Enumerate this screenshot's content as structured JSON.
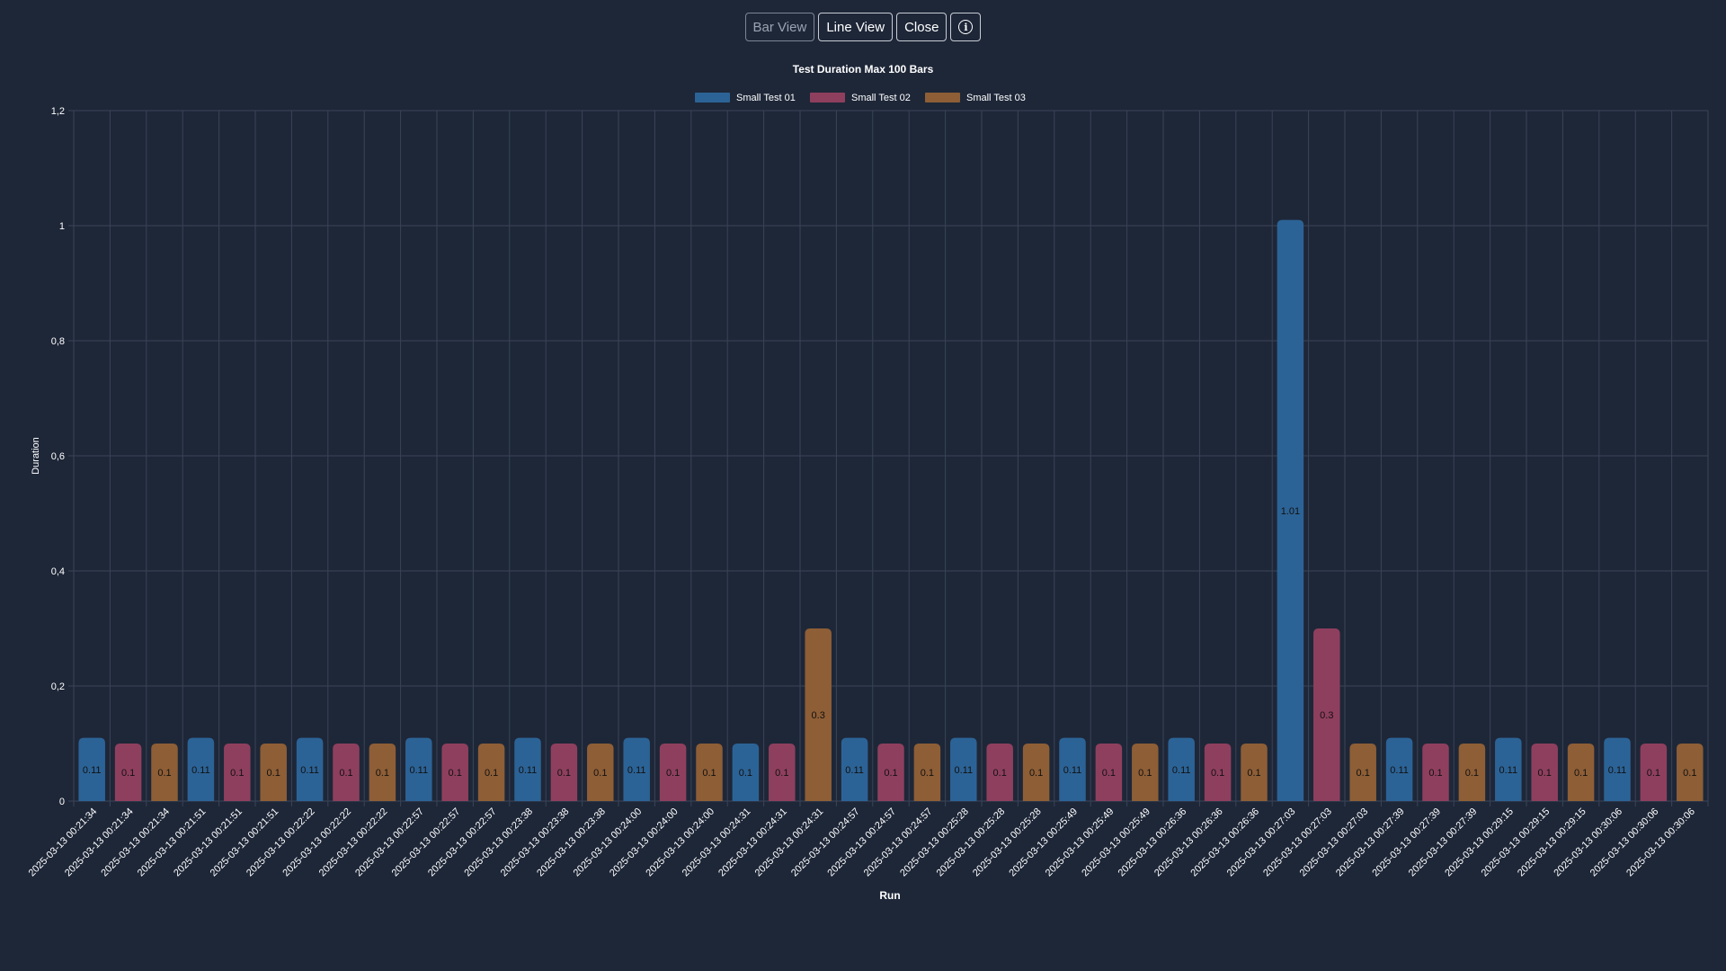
{
  "toolbar": {
    "bar_view_label": "Bar View",
    "line_view_label": "Line View",
    "close_label": "Close",
    "info_icon": "info-circle-icon"
  },
  "chart_data": {
    "type": "bar",
    "title": "Test Duration Max 100 Bars",
    "xlabel": "Run",
    "ylabel": "Duration",
    "ylim": [
      0,
      1.2
    ],
    "yticks": [
      "0",
      "0,2",
      "0,4",
      "0,6",
      "0,8",
      "1",
      "1,2"
    ],
    "legend_position": "top-center",
    "grid": true,
    "series": [
      {
        "name": "Small Test 01",
        "color": "#2c6396"
      },
      {
        "name": "Small Test 02",
        "color": "#8f3f5e"
      },
      {
        "name": "Small Test 03",
        "color": "#8e5e36"
      }
    ],
    "bars": [
      {
        "x": "2025-03-13 00:21:34",
        "series": 0,
        "value": 0.11,
        "label": "0.11"
      },
      {
        "x": "2025-03-13 00:21:34",
        "series": 1,
        "value": 0.1,
        "label": "0.1"
      },
      {
        "x": "2025-03-13 00:21:34",
        "series": 2,
        "value": 0.1,
        "label": "0.1"
      },
      {
        "x": "2025-03-13 00:21:51",
        "series": 0,
        "value": 0.11,
        "label": "0.11"
      },
      {
        "x": "2025-03-13 00:21:51",
        "series": 1,
        "value": 0.1,
        "label": "0.1"
      },
      {
        "x": "2025-03-13 00:21:51",
        "series": 2,
        "value": 0.1,
        "label": "0.1"
      },
      {
        "x": "2025-03-13 00:22:22",
        "series": 0,
        "value": 0.11,
        "label": "0.11"
      },
      {
        "x": "2025-03-13 00:22:22",
        "series": 1,
        "value": 0.1,
        "label": "0.1"
      },
      {
        "x": "2025-03-13 00:22:22",
        "series": 2,
        "value": 0.1,
        "label": "0.1"
      },
      {
        "x": "2025-03-13 00:22:57",
        "series": 0,
        "value": 0.11,
        "label": "0.11"
      },
      {
        "x": "2025-03-13 00:22:57",
        "series": 1,
        "value": 0.1,
        "label": "0.1"
      },
      {
        "x": "2025-03-13 00:22:57",
        "series": 2,
        "value": 0.1,
        "label": "0.1"
      },
      {
        "x": "2025-03-13 00:23:38",
        "series": 0,
        "value": 0.11,
        "label": "0.11"
      },
      {
        "x": "2025-03-13 00:23:38",
        "series": 1,
        "value": 0.1,
        "label": "0.1"
      },
      {
        "x": "2025-03-13 00:23:38",
        "series": 2,
        "value": 0.1,
        "label": "0.1"
      },
      {
        "x": "2025-03-13 00:24:00",
        "series": 0,
        "value": 0.11,
        "label": "0.11"
      },
      {
        "x": "2025-03-13 00:24:00",
        "series": 1,
        "value": 0.1,
        "label": "0.1"
      },
      {
        "x": "2025-03-13 00:24:00",
        "series": 2,
        "value": 0.1,
        "label": "0.1"
      },
      {
        "x": "2025-03-13 00:24:31",
        "series": 0,
        "value": 0.1,
        "label": "0.1"
      },
      {
        "x": "2025-03-13 00:24:31",
        "series": 1,
        "value": 0.1,
        "label": "0.1"
      },
      {
        "x": "2025-03-13 00:24:31",
        "series": 2,
        "value": 0.3,
        "label": "0.3"
      },
      {
        "x": "2025-03-13 00:24:57",
        "series": 0,
        "value": 0.11,
        "label": "0.11"
      },
      {
        "x": "2025-03-13 00:24:57",
        "series": 1,
        "value": 0.1,
        "label": "0.1"
      },
      {
        "x": "2025-03-13 00:24:57",
        "series": 2,
        "value": 0.1,
        "label": "0.1"
      },
      {
        "x": "2025-03-13 00:25:28",
        "series": 0,
        "value": 0.11,
        "label": "0.11"
      },
      {
        "x": "2025-03-13 00:25:28",
        "series": 1,
        "value": 0.1,
        "label": "0.1"
      },
      {
        "x": "2025-03-13 00:25:28",
        "series": 2,
        "value": 0.1,
        "label": "0.1"
      },
      {
        "x": "2025-03-13 00:25:49",
        "series": 0,
        "value": 0.11,
        "label": "0.11"
      },
      {
        "x": "2025-03-13 00:25:49",
        "series": 1,
        "value": 0.1,
        "label": "0.1"
      },
      {
        "x": "2025-03-13 00:25:49",
        "series": 2,
        "value": 0.1,
        "label": "0.1"
      },
      {
        "x": "2025-03-13 00:26:36",
        "series": 0,
        "value": 0.11,
        "label": "0.11"
      },
      {
        "x": "2025-03-13 00:26:36",
        "series": 1,
        "value": 0.1,
        "label": "0.1"
      },
      {
        "x": "2025-03-13 00:26:36",
        "series": 2,
        "value": 0.1,
        "label": "0.1"
      },
      {
        "x": "2025-03-13 00:27:03",
        "series": 0,
        "value": 1.01,
        "label": "1.01"
      },
      {
        "x": "2025-03-13 00:27:03",
        "series": 1,
        "value": 0.3,
        "label": "0.3"
      },
      {
        "x": "2025-03-13 00:27:03",
        "series": 2,
        "value": 0.1,
        "label": "0.1"
      },
      {
        "x": "2025-03-13 00:27:39",
        "series": 0,
        "value": 0.11,
        "label": "0.11"
      },
      {
        "x": "2025-03-13 00:27:39",
        "series": 1,
        "value": 0.1,
        "label": "0.1"
      },
      {
        "x": "2025-03-13 00:27:39",
        "series": 2,
        "value": 0.1,
        "label": "0.1"
      },
      {
        "x": "2025-03-13 00:29:15",
        "series": 0,
        "value": 0.11,
        "label": "0.11"
      },
      {
        "x": "2025-03-13 00:29:15",
        "series": 1,
        "value": 0.1,
        "label": "0.1"
      },
      {
        "x": "2025-03-13 00:29:15",
        "series": 2,
        "value": 0.1,
        "label": "0.1"
      },
      {
        "x": "2025-03-13 00:30:06",
        "series": 0,
        "value": 0.11,
        "label": "0.11"
      },
      {
        "x": "2025-03-13 00:30:06",
        "series": 1,
        "value": 0.1,
        "label": "0.1"
      },
      {
        "x": "2025-03-13 00:30:06",
        "series": 2,
        "value": 0.1,
        "label": "0.1"
      }
    ]
  }
}
